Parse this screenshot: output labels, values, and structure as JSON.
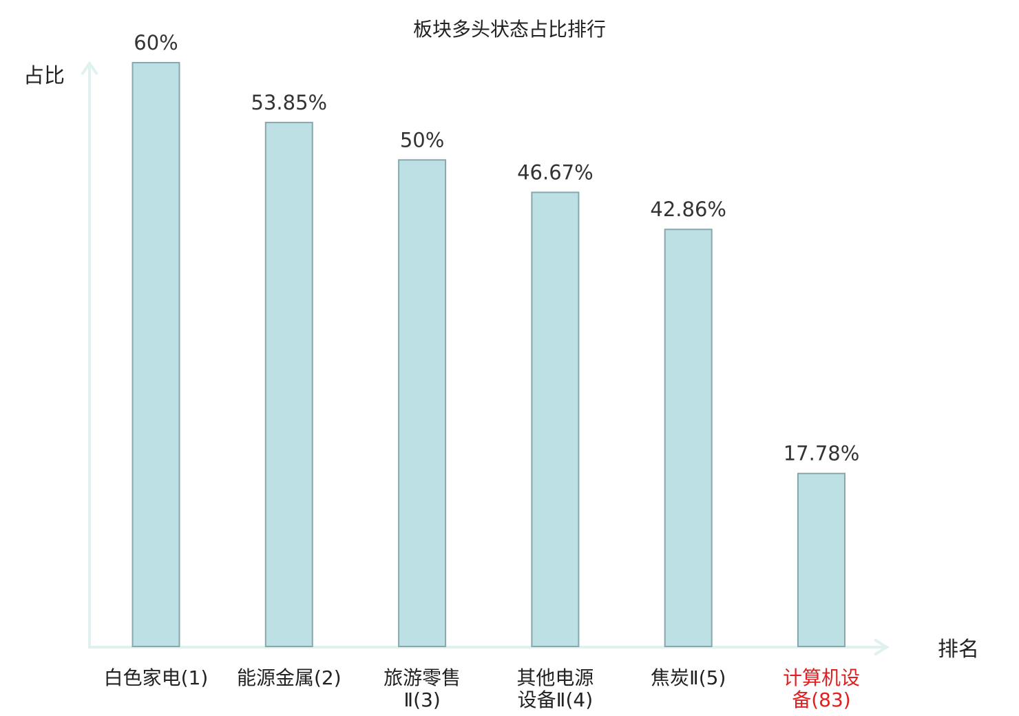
{
  "chart_data": {
    "type": "bar",
    "title": "板块多头状态占比排行",
    "ylabel": "占比",
    "xlabel": "排名",
    "categories": [
      [
        "白色家电(1)"
      ],
      [
        "能源金属(2)"
      ],
      [
        "旅游零售",
        "Ⅱ(3)"
      ],
      [
        "其他电源",
        "设备Ⅱ(4)"
      ],
      [
        "焦炭Ⅱ(5)"
      ],
      [
        "计算机设",
        "备(83)"
      ]
    ],
    "values": [
      60,
      53.85,
      50,
      46.67,
      42.86,
      17.78
    ],
    "value_labels": [
      "60%",
      "53.85%",
      "50%",
      "46.67%",
      "42.86%",
      "17.78%"
    ],
    "highlight_index": 5,
    "ylim": [
      0,
      60
    ],
    "grid": false,
    "colors": {
      "bar_fill": "#bce0e3",
      "bar_stroke": "#87a7ad",
      "axis": "#dff2ef",
      "highlight": "#e02020",
      "text": "#222222"
    }
  }
}
